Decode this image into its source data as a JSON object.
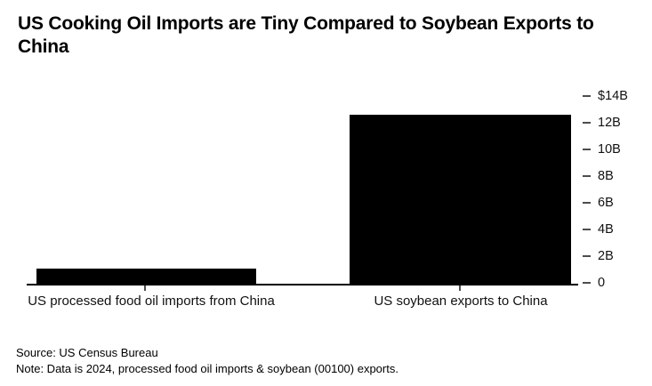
{
  "title": "US Cooking Oil Imports are Tiny Compared to Soybean Exports to China",
  "footer": {
    "source": "Source: US Census Bureau",
    "note": "Note: Data is 2024, processed food oil imports & soybean (00100) exports."
  },
  "colors": {
    "bar": "#000000",
    "background": "#ffffff",
    "axis": "#000000"
  },
  "chart_data": {
    "type": "bar",
    "title": "US Cooking Oil Imports are Tiny Compared to Soybean Exports to China",
    "categories": [
      "US processed food oil imports from China",
      "US soybean exports to China"
    ],
    "values": [
      1.2,
      12.6
    ],
    "unit": "USD billions",
    "xlabel": "",
    "ylabel": "",
    "ylim": [
      0,
      14
    ],
    "yticks": [
      "$14B",
      "12B",
      "10B",
      "8B",
      "6B",
      "4B",
      "2B",
      "0"
    ],
    "ytick_values": [
      14,
      12,
      10,
      8,
      6,
      4,
      2,
      0
    ],
    "axis_side": "right",
    "grid": false,
    "legend_position": "none",
    "bar_color": "#000000"
  }
}
